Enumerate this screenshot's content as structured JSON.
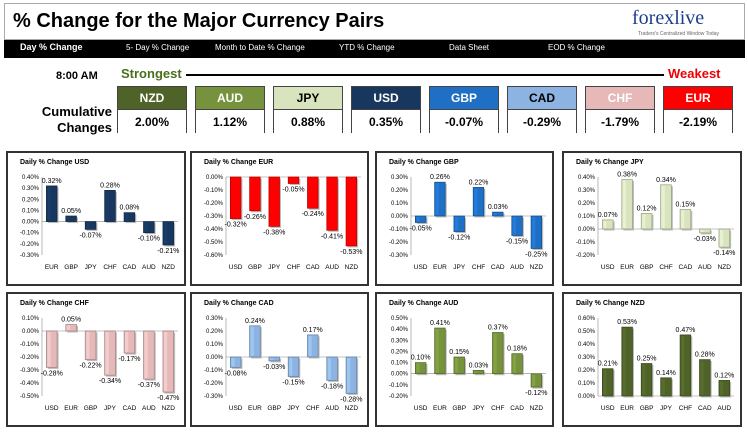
{
  "header": {
    "title": "% Change for the Major Currency Pairs",
    "logo_text": "forexlive",
    "logo_tagline": "Traders's Centralized Window Today"
  },
  "nav": {
    "items": [
      "Day % Change",
      "5- Day % Change",
      "Month to Date % Change",
      "YTD % Change",
      "Data Sheet",
      "EOD % Change"
    ]
  },
  "summary": {
    "time": "8:00 AM",
    "strongest": "Strongest",
    "weakest": "Weakest",
    "cumulative_label": "Cumulative Changes",
    "currencies": [
      {
        "name": "NZD",
        "value": "2.00%",
        "bg": "#4f6228",
        "fg": "#ffffff"
      },
      {
        "name": "AUD",
        "value": "1.12%",
        "bg": "#76923c",
        "fg": "#ffffff"
      },
      {
        "name": "JPY",
        "value": "0.88%",
        "bg": "#d7e4bd",
        "fg": "#000000"
      },
      {
        "name": "USD",
        "value": "0.35%",
        "bg": "#17375e",
        "fg": "#ffffff"
      },
      {
        "name": "GBP",
        "value": "-0.07%",
        "bg": "#1f6fc5",
        "fg": "#ffffff"
      },
      {
        "name": "CAD",
        "value": "-0.29%",
        "bg": "#8db3e2",
        "fg": "#000000"
      },
      {
        "name": "CHF",
        "value": "-1.79%",
        "bg": "#e6b9b8",
        "fg": "#ffffff"
      },
      {
        "name": "EUR",
        "value": "-2.19%",
        "bg": "#ff0000",
        "fg": "#ffffff"
      }
    ]
  },
  "chart_data": [
    {
      "type": "bar",
      "title": "Daily % Change USD",
      "categories": [
        "EUR",
        "GBP",
        "JPY",
        "CHF",
        "CAD",
        "AUD",
        "NZD"
      ],
      "values": [
        0.32,
        0.05,
        -0.07,
        0.28,
        0.08,
        -0.1,
        -0.21
      ],
      "labels": [
        "0.32%",
        "0.05%",
        "-0.07%",
        "0.28%",
        "0.08%",
        "-0.10%",
        "-0.21%"
      ],
      "ylim": [
        -0.3,
        0.4
      ],
      "yticks": [
        "-0.30%",
        "-0.20%",
        "-0.10%",
        "0.00%",
        "0.10%",
        "0.20%",
        "0.30%",
        "0.40%"
      ],
      "color": "#17375e"
    },
    {
      "type": "bar",
      "title": "Daily % Change EUR",
      "categories": [
        "USD",
        "GBP",
        "JPY",
        "CHF",
        "CAD",
        "AUD",
        "NZD"
      ],
      "values": [
        -0.32,
        -0.26,
        -0.38,
        -0.05,
        -0.24,
        -0.41,
        -0.53
      ],
      "labels": [
        "-0.32%",
        "-0.26%",
        "-0.38%",
        "-0.05%",
        "-0.24%",
        "-0.41%",
        "-0.53%"
      ],
      "ylim": [
        -0.6,
        0.0
      ],
      "yticks": [
        "-0.60%",
        "-0.50%",
        "-0.40%",
        "-0.30%",
        "-0.20%",
        "-0.10%",
        "0.00%"
      ],
      "color": "#ff0000"
    },
    {
      "type": "bar",
      "title": "Daily % Change GBP",
      "categories": [
        "USD",
        "EUR",
        "JPY",
        "CHF",
        "CAD",
        "AUD",
        "NZD"
      ],
      "values": [
        -0.05,
        0.26,
        -0.12,
        0.22,
        0.03,
        -0.15,
        -0.25
      ],
      "labels": [
        "-0.05%",
        "0.26%",
        "-0.12%",
        "0.22%",
        "0.03%",
        "-0.15%",
        "-0.25%"
      ],
      "ylim": [
        -0.3,
        0.3
      ],
      "yticks": [
        "-0.30%",
        "-0.20%",
        "-0.10%",
        "0.00%",
        "0.10%",
        "0.20%",
        "0.30%"
      ],
      "color": "#1f6fc5"
    },
    {
      "type": "bar",
      "title": "Daily % Change JPY",
      "categories": [
        "USD",
        "EUR",
        "GBP",
        "CHF",
        "CAD",
        "AUD",
        "NZD"
      ],
      "values": [
        0.07,
        0.38,
        0.12,
        0.34,
        0.15,
        -0.03,
        -0.14
      ],
      "labels": [
        "0.07%",
        "0.38%",
        "0.12%",
        "0.34%",
        "0.15%",
        "-0.03%",
        "-0.14%"
      ],
      "ylim": [
        -0.2,
        0.4
      ],
      "yticks": [
        "-0.20%",
        "-0.10%",
        "0.00%",
        "0.10%",
        "0.20%",
        "0.30%",
        "0.40%"
      ],
      "color": "#d7e4bd"
    },
    {
      "type": "bar",
      "title": "Daily % Change CHF",
      "categories": [
        "USD",
        "EUR",
        "GBP",
        "JPY",
        "CAD",
        "AUD",
        "NZD"
      ],
      "values": [
        -0.28,
        0.05,
        -0.22,
        -0.34,
        -0.17,
        -0.37,
        -0.47
      ],
      "labels": [
        "-0.28%",
        "0.05%",
        "-0.22%",
        "-0.34%",
        "-0.17%",
        "-0.37%",
        "-0.47%"
      ],
      "ylim": [
        -0.5,
        0.1
      ],
      "yticks": [
        "-0.50%",
        "-0.40%",
        "-0.30%",
        "-0.20%",
        "-0.10%",
        "0.00%",
        "0.10%"
      ],
      "color": "#e6b9b8"
    },
    {
      "type": "bar",
      "title": "Daily % Change CAD",
      "categories": [
        "USD",
        "EUR",
        "GBP",
        "JPY",
        "CHF",
        "AUD",
        "NZD"
      ],
      "values": [
        -0.08,
        0.24,
        -0.03,
        -0.15,
        0.17,
        -0.18,
        -0.28
      ],
      "labels": [
        "-0.08%",
        "0.24%",
        "-0.03%",
        "-0.15%",
        "0.17%",
        "-0.18%",
        "-0.28%"
      ],
      "ylim": [
        -0.3,
        0.3
      ],
      "yticks": [
        "-0.30%",
        "-0.20%",
        "-0.10%",
        "0.00%",
        "0.10%",
        "0.20%",
        "0.30%"
      ],
      "color": "#8db3e2"
    },
    {
      "type": "bar",
      "title": "Daily % Change AUD",
      "categories": [
        "USD",
        "EUR",
        "GBP",
        "JPY",
        "CHF",
        "CAD",
        "NZD"
      ],
      "values": [
        0.1,
        0.41,
        0.15,
        0.03,
        0.37,
        0.18,
        -0.12
      ],
      "labels": [
        "0.10%",
        "0.41%",
        "0.15%",
        "0.03%",
        "0.37%",
        "0.18%",
        "-0.12%"
      ],
      "ylim": [
        -0.2,
        0.5
      ],
      "yticks": [
        "-0.20%",
        "-0.10%",
        "0.00%",
        "0.10%",
        "0.20%",
        "0.30%",
        "0.40%",
        "0.50%"
      ],
      "color": "#76923c"
    },
    {
      "type": "bar",
      "title": "Daily % Change NZD",
      "categories": [
        "USD",
        "EUR",
        "GBP",
        "JPY",
        "CHF",
        "CAD",
        "AUD"
      ],
      "values": [
        0.21,
        0.53,
        0.25,
        0.14,
        0.47,
        0.28,
        0.12
      ],
      "labels": [
        "0.21%",
        "0.53%",
        "0.25%",
        "0.14%",
        "0.47%",
        "0.28%",
        "0.12%"
      ],
      "ylim": [
        0.0,
        0.6
      ],
      "yticks": [
        "0.00%",
        "0.10%",
        "0.20%",
        "0.30%",
        "0.40%",
        "0.50%",
        "0.60%"
      ],
      "color": "#4f6228"
    }
  ]
}
